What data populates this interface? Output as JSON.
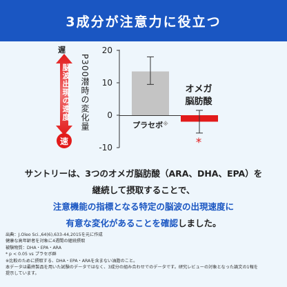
{
  "banner": {
    "title": "3成分が注意力に役立つ"
  },
  "speed_scale": {
    "slow": "遅",
    "label": "脳波出現の速度",
    "fast": "速",
    "arrow_color": "#e21b1b"
  },
  "chart_data": {
    "type": "bar",
    "ylabel": "P300潜時の変化量",
    "ylim": [
      -10,
      20
    ],
    "yticks": [
      -10,
      0,
      10,
      20
    ],
    "categories": [
      "プラセボ※",
      "オメガ脳肪酸"
    ],
    "category_labels": {
      "placebo": "プラセボ",
      "placebo_mark": "※",
      "omega_line1": "オメガ",
      "omega_line2": "脳肪酸"
    },
    "values": [
      13.5,
      -2.0
    ],
    "error_low": [
      9.5,
      -5.5
    ],
    "error_high": [
      18.0,
      1.5
    ],
    "colors": [
      "#c4c4c4",
      "#e21b1b"
    ],
    "significance": "*"
  },
  "body": {
    "line1": "サントリーは、3つのオメガ脳肪酸（ARA、DHA、EPA）を",
    "line2": "継続して摂取することで、",
    "line3": "注意機能の指標となる特定の脳波の出現速度に",
    "line4a": "有意な変化があることを確認",
    "line4b": "しました。"
  },
  "notes": [
    "出典：J.Oleo Sci.,64(6),633-44,2015を元に作成",
    "健康な高年齢者を対象に4週間の継続摂取",
    "被験物質：DHA・EPA・ARA",
    "* p < 0.05 vs プラセボ群",
    "※比較のために摂取する、DHA・EPA・ARAを含まない油脂のこと。",
    "本データは最終製品を用いた試験のデータではなく、3成分の組み合わせでのデータです。研究レビューの対象となった論文の1報を",
    "提示しています。"
  ]
}
